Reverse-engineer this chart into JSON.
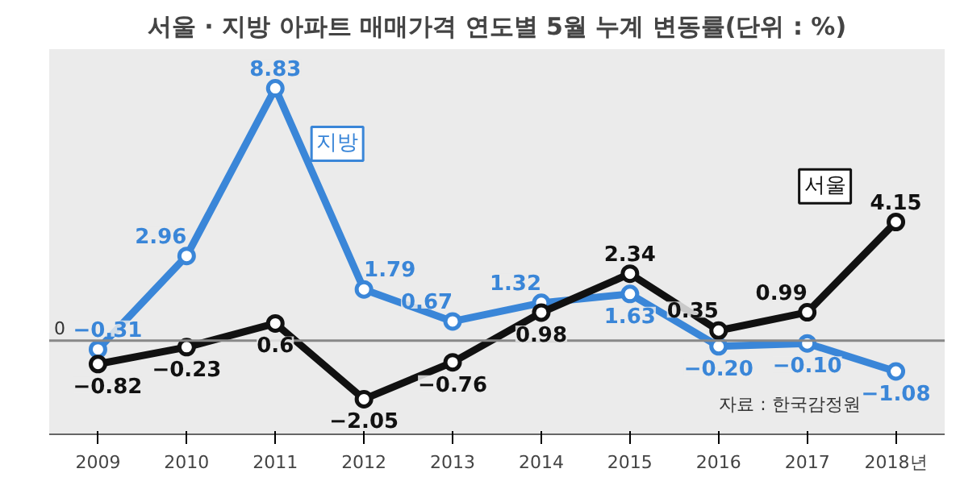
{
  "chart_data": {
    "type": "line",
    "title": "서울 · 지방 아파트 매매가격 연도별 5월 누계 변동률(단위 : %)",
    "categories": [
      "2009",
      "2010",
      "2011",
      "2012",
      "2013",
      "2014",
      "2015",
      "2016",
      "2017",
      "2018년"
    ],
    "series": [
      {
        "name": "지방",
        "color": "#3a86d8",
        "values": [
          -0.31,
          2.96,
          8.83,
          1.79,
          0.67,
          1.32,
          1.63,
          -0.2,
          -0.1,
          -1.08
        ],
        "value_labels": [
          "−0.31",
          "2.96",
          "8.83",
          "1.79",
          "0.67",
          "1.32",
          "1.63",
          "−0.20",
          "−0.10",
          "−1.08"
        ]
      },
      {
        "name": "서울",
        "color": "#111111",
        "values": [
          -0.82,
          -0.23,
          0.6,
          -2.05,
          -0.76,
          0.98,
          2.34,
          0.35,
          0.99,
          4.15
        ],
        "value_labels": [
          "−0.82",
          "−0.23",
          "0.6",
          "−2.05",
          "−0.76",
          "0.98",
          "2.34",
          "0.35",
          "0.99",
          "4.15"
        ]
      }
    ],
    "grid": false,
    "legend": false,
    "marker": "circle",
    "line_style": "solid",
    "ref_lines": [
      {
        "axis": "y",
        "value": 0,
        "color": "#888888",
        "label": "0"
      }
    ],
    "annotations": [
      "자료 : 한국감정원"
    ]
  }
}
